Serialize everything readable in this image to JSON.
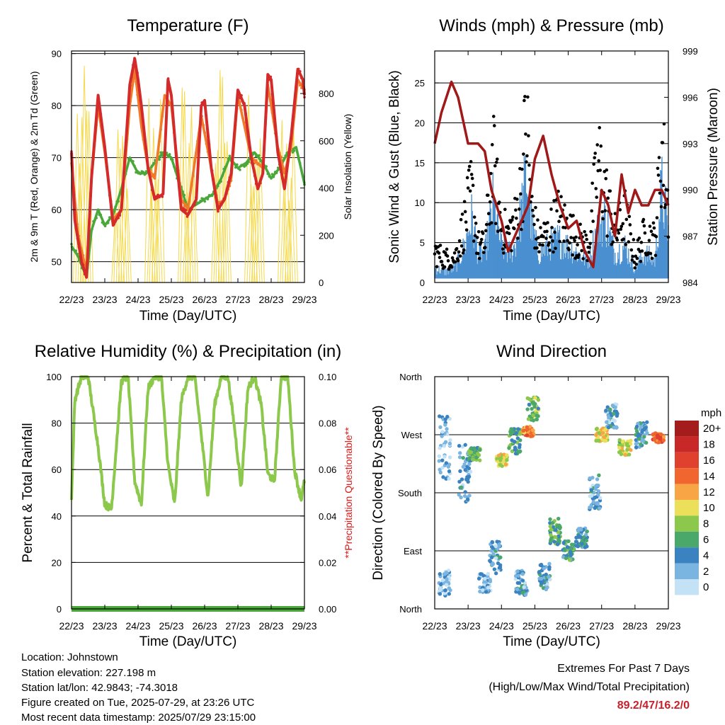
{
  "chart_data": [
    {
      "type": "line",
      "title": "Temperature (F)",
      "xlabel": "Time (Day/UTC)",
      "ylabel": "2m & 9m T (Red, Orange) & 2m Td (Green)",
      "ylabel_right": "Solar Insolation (Yellow)",
      "x_ticks": [
        "22/23",
        "23/23",
        "24/23",
        "25/23",
        "26/23",
        "27/23",
        "28/23",
        "29/23"
      ],
      "ylim": [
        46,
        90.5
      ],
      "y_ticks": [
        50,
        60,
        70,
        80,
        90
      ],
      "ylim_right": [
        0,
        980
      ],
      "y_ticks_right": [
        0,
        200,
        400,
        600,
        800
      ],
      "grid": true,
      "series": [
        {
          "name": "2m T",
          "color": "#d42a2a",
          "x": [
            0,
            0.1,
            0.3,
            0.45,
            0.6,
            0.8,
            1.0,
            1.25,
            1.5,
            1.75,
            1.9,
            2.0,
            2.1,
            2.3,
            2.5,
            2.75,
            2.9,
            3.0,
            3.15,
            3.3,
            3.5,
            3.75,
            3.9,
            4.0,
            4.2,
            4.4,
            4.6,
            4.8,
            5.0,
            5.2,
            5.4,
            5.6,
            5.75,
            5.9,
            6.0,
            6.2,
            6.4,
            6.6,
            6.8,
            6.95,
            7.0
          ],
          "y": [
            71,
            58,
            50,
            47,
            66,
            82,
            72,
            57,
            60,
            84,
            89,
            85,
            80,
            68,
            62,
            63,
            85,
            82,
            70,
            60,
            59,
            62,
            80,
            81,
            68,
            60,
            62,
            67,
            83,
            80,
            70,
            64,
            67,
            86,
            85,
            71,
            64,
            74,
            87,
            85,
            82
          ]
        },
        {
          "name": "9m T",
          "color": "#f07a2a",
          "x": [
            0,
            0.2,
            0.45,
            0.6,
            0.8,
            1.0,
            1.25,
            1.5,
            1.75,
            1.9,
            2.1,
            2.3,
            2.5,
            2.8,
            3.0,
            3.3,
            3.5,
            3.9,
            4.2,
            4.4,
            4.6,
            4.8,
            5.0,
            5.4,
            5.75,
            5.9,
            6.2,
            6.4,
            6.6,
            6.8,
            7.0
          ],
          "y": [
            69,
            55,
            48,
            66,
            80,
            71,
            58,
            60,
            80,
            87,
            76,
            68,
            66,
            82,
            80,
            62,
            60,
            78,
            68,
            61,
            62,
            66,
            82,
            70,
            68,
            84,
            72,
            67,
            72,
            85,
            83
          ]
        },
        {
          "name": "2m Td",
          "color": "#4aa83a",
          "x": [
            0,
            0.2,
            0.45,
            0.6,
            0.8,
            1.0,
            1.25,
            1.5,
            1.75,
            2.0,
            2.25,
            2.5,
            2.75,
            3.0,
            3.25,
            3.5,
            3.75,
            4.0,
            4.25,
            4.5,
            4.75,
            5.0,
            5.25,
            5.5,
            5.75,
            6.0,
            6.25,
            6.5,
            6.75,
            7.0
          ],
          "y": [
            53,
            51,
            47,
            56,
            60,
            57,
            59,
            64,
            70,
            67,
            67,
            69,
            71,
            70,
            65,
            60,
            61,
            62,
            63,
            66,
            70,
            68,
            69,
            71,
            69,
            66,
            68,
            71,
            72,
            65
          ]
        },
        {
          "name": "Solar Insolation",
          "color": "#f5d94a",
          "axis": "right",
          "peaks": [
            {
              "x": 0.35,
              "y": 920
            },
            {
              "x": 1.5,
              "y": 700
            },
            {
              "x": 2.5,
              "y": 900
            },
            {
              "x": 3.5,
              "y": 900
            },
            {
              "x": 4.5,
              "y": 950
            },
            {
              "x": 5.5,
              "y": 900
            },
            {
              "x": 6.5,
              "y": 700
            }
          ]
        }
      ]
    },
    {
      "type": "line",
      "title": "Winds (mph) & Pressure (mb)",
      "xlabel": "Time (Day/UTC)",
      "ylabel": "Sonic Wind & Gust (Blue, Black)",
      "ylabel_right": "Station Pressure (Maroon)",
      "x_ticks": [
        "22/23",
        "23/23",
        "24/23",
        "25/23",
        "26/23",
        "27/23",
        "28/23",
        "29/23"
      ],
      "ylim": [
        0,
        29
      ],
      "y_ticks": [
        0,
        5,
        10,
        15,
        20,
        25
      ],
      "ylim_right": [
        984,
        999
      ],
      "y_ticks_right": [
        984,
        987,
        990,
        993,
        996,
        999
      ],
      "grid": true,
      "series": [
        {
          "name": "Sonic Wind",
          "color": "#4a90d0",
          "x": [
            0,
            0.3,
            0.6,
            0.9,
            1.1,
            1.3,
            1.5,
            1.75,
            2.0,
            2.2,
            2.4,
            2.6,
            2.75,
            2.9,
            3.1,
            3.4,
            3.7,
            4.0,
            4.3,
            4.6,
            4.9,
            5.1,
            5.4,
            5.7,
            6.0,
            6.3,
            6.6,
            6.8,
            7.0
          ],
          "y": [
            2,
            1.5,
            2,
            5,
            9,
            4,
            4,
            11,
            5,
            4,
            5,
            10,
            15,
            8,
            4,
            5,
            6,
            5,
            4,
            3,
            8,
            9,
            4,
            5,
            2,
            4,
            3,
            13,
            7
          ]
        },
        {
          "name": "Gust",
          "color": "#000000",
          "x": [
            0,
            0.3,
            0.6,
            0.9,
            1.1,
            1.3,
            1.5,
            1.75,
            2.0,
            2.2,
            2.4,
            2.6,
            2.75,
            2.9,
            3.1,
            3.4,
            3.7,
            4.0,
            4.3,
            4.6,
            4.9,
            5.1,
            5.4,
            5.7,
            6.0,
            6.3,
            6.6,
            6.8,
            7.0
          ],
          "y": [
            5,
            4,
            4,
            10,
            15,
            6,
            6,
            20,
            9,
            8,
            10,
            16,
            27,
            12,
            7,
            8,
            11,
            9,
            7,
            6,
            20,
            15,
            8,
            11,
            4,
            8,
            7,
            23,
            12
          ]
        },
        {
          "name": "Station Pressure",
          "color": "#a01818",
          "axis": "right",
          "x": [
            0,
            0.2,
            0.5,
            0.7,
            1.0,
            1.3,
            1.5,
            1.7,
            2.0,
            2.2,
            2.5,
            2.8,
            3.0,
            3.25,
            3.5,
            3.75,
            4.0,
            4.25,
            4.5,
            4.75,
            5.0,
            5.2,
            5.4,
            5.6,
            5.8,
            6.0,
            6.2,
            6.4,
            6.6,
            6.8,
            7.0
          ],
          "y": [
            993,
            995,
            997,
            996,
            993,
            993,
            992.5,
            990,
            988,
            986,
            987.5,
            989,
            992,
            993.5,
            991,
            989,
            987.5,
            988,
            986,
            985,
            990,
            989,
            987,
            991,
            988.5,
            990,
            989,
            989,
            990,
            990,
            989
          ]
        }
      ]
    },
    {
      "type": "line",
      "title": "Relative Humidity (%) & Precipitation (in)",
      "xlabel": "Time (Day/UTC)",
      "ylabel": "Percent & Total Rainfall",
      "ylabel_right": "**Precipitation Questionable**",
      "x_ticks": [
        "22/23",
        "23/23",
        "24/23",
        "25/23",
        "26/23",
        "27/23",
        "28/23",
        "29/23"
      ],
      "ylim": [
        0,
        100
      ],
      "y_ticks": [
        0,
        20,
        40,
        60,
        80,
        100
      ],
      "ylim_right": [
        0,
        0.1
      ],
      "y_ticks_right": [
        "0.00",
        "0.02",
        "0.04",
        "0.06",
        "0.08",
        "0.10"
      ],
      "grid": true,
      "series": [
        {
          "name": "Relative Humidity",
          "color": "#8cc84b",
          "x": [
            0,
            0.1,
            0.3,
            0.5,
            0.8,
            1.0,
            1.2,
            1.5,
            1.7,
            1.9,
            2.1,
            2.3,
            2.5,
            2.7,
            2.9,
            3.1,
            3.3,
            3.5,
            3.7,
            3.9,
            4.1,
            4.3,
            4.5,
            4.7,
            4.9,
            5.1,
            5.3,
            5.5,
            5.7,
            5.9,
            6.1,
            6.3,
            6.5,
            6.7,
            6.9,
            7.0
          ],
          "y": [
            48,
            90,
            100,
            100,
            70,
            45,
            43,
            98,
            100,
            55,
            45,
            95,
            100,
            100,
            62,
            45,
            90,
            100,
            100,
            75,
            48,
            88,
            100,
            100,
            78,
            52,
            95,
            100,
            88,
            58,
            55,
            100,
            100,
            60,
            47,
            55
          ]
        },
        {
          "name": "Total Precipitation",
          "color": "#4aa83a",
          "x": [
            0,
            7
          ],
          "y": [
            0,
            0
          ]
        }
      ]
    },
    {
      "type": "scatter",
      "title": "Wind Direction",
      "xlabel": "Time (Day/UTC)",
      "ylabel": "Direction (Colored By Speed)",
      "x_ticks": [
        "22/23",
        "23/23",
        "24/23",
        "25/23",
        "26/23",
        "27/23",
        "28/23",
        "29/23"
      ],
      "y_ticks": [
        "North",
        "East",
        "South",
        "West",
        "North"
      ],
      "ylim": [
        0,
        360
      ],
      "grid": true,
      "colorbar": {
        "title": "mph",
        "labels": [
          "20+",
          "18",
          "16",
          "14",
          "12",
          "10",
          "8",
          "6",
          "4",
          "2",
          "0"
        ],
        "colors": [
          "#a51c1c",
          "#c82828",
          "#e0402e",
          "#f0662e",
          "#f8a545",
          "#ece05a",
          "#8cc84b",
          "#4aa86a",
          "#3a82c0",
          "#7ab4e0",
          "#c3e2f5"
        ]
      },
      "clusters": [
        {
          "x": 0.3,
          "dir": 250,
          "spread": 100,
          "speed": 2
        },
        {
          "x": 0.3,
          "dir": 40,
          "spread": 40,
          "speed": 2
        },
        {
          "x": 0.9,
          "dir": 210,
          "spread": 90,
          "speed": 3
        },
        {
          "x": 1.2,
          "dir": 240,
          "spread": 20,
          "speed": 6
        },
        {
          "x": 1.5,
          "dir": 40,
          "spread": 30,
          "speed": 2
        },
        {
          "x": 1.8,
          "dir": 80,
          "spread": 50,
          "speed": 3
        },
        {
          "x": 2.0,
          "dir": 230,
          "spread": 20,
          "speed": 10
        },
        {
          "x": 2.4,
          "dir": 260,
          "spread": 40,
          "speed": 6
        },
        {
          "x": 2.8,
          "dir": 275,
          "spread": 15,
          "speed": 13
        },
        {
          "x": 2.95,
          "dir": 310,
          "spread": 40,
          "speed": 7
        },
        {
          "x": 2.6,
          "dir": 40,
          "spread": 40,
          "speed": 3
        },
        {
          "x": 3.3,
          "dir": 50,
          "spread": 40,
          "speed": 3
        },
        {
          "x": 3.6,
          "dir": 120,
          "spread": 40,
          "speed": 6
        },
        {
          "x": 4.0,
          "dir": 90,
          "spread": 30,
          "speed": 5
        },
        {
          "x": 4.4,
          "dir": 110,
          "spread": 30,
          "speed": 4
        },
        {
          "x": 4.8,
          "dir": 180,
          "spread": 60,
          "speed": 3
        },
        {
          "x": 5.0,
          "dir": 270,
          "spread": 20,
          "speed": 10
        },
        {
          "x": 5.3,
          "dir": 300,
          "spread": 40,
          "speed": 3
        },
        {
          "x": 5.7,
          "dir": 250,
          "spread": 25,
          "speed": 9
        },
        {
          "x": 6.2,
          "dir": 270,
          "spread": 40,
          "speed": 4
        },
        {
          "x": 6.7,
          "dir": 265,
          "spread": 15,
          "speed": 14
        }
      ]
    }
  ],
  "info": {
    "location": "Location: Johnstown",
    "elevation": "Station elevation: 227.198 m",
    "latlon": "Station lat/lon: 42.9843; -74.3018",
    "created": "Figure created on Tue, 2025-07-29, at 23:26 UTC",
    "recent": "Most recent data timestamp: 2025/07/29 23:15:00"
  },
  "extremes": {
    "title": "Extremes For Past 7 Days",
    "subtitle": "(High/Low/Max Wind/Total Precipitation)",
    "values": "89.2/47/16.2/0",
    "values_color": "#c8202a"
  }
}
